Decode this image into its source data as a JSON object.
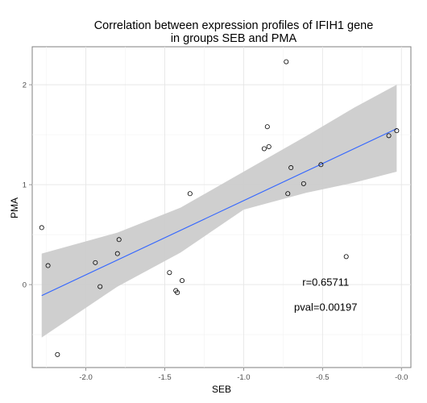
{
  "chart_data": {
    "type": "scatter",
    "title": "Correlation between expression profiles of IFIH1 gene",
    "subtitle": "in groups SEB and PMA",
    "xlabel": "SEB",
    "ylabel": "PMA",
    "xlim": [
      -2.34,
      0.06
    ],
    "ylim": [
      -0.83,
      2.38
    ],
    "xticks": [
      -2.0,
      -1.5,
      -1.0,
      -0.5,
      0.0
    ],
    "xtick_labels": [
      "-2.0",
      "-1.5",
      "-1.0",
      "-0.5",
      "-0.0"
    ],
    "yticks": [
      0,
      1,
      2
    ],
    "ytick_labels": [
      "0",
      "1",
      "2"
    ],
    "grid": true,
    "points": [
      {
        "x": -2.28,
        "y": 0.57
      },
      {
        "x": -2.24,
        "y": 0.19
      },
      {
        "x": -2.18,
        "y": -0.7
      },
      {
        "x": -1.94,
        "y": 0.22
      },
      {
        "x": -1.91,
        "y": -0.02
      },
      {
        "x": -1.8,
        "y": 0.31
      },
      {
        "x": -1.79,
        "y": 0.45
      },
      {
        "x": -1.47,
        "y": 0.12
      },
      {
        "x": -1.43,
        "y": -0.06
      },
      {
        "x": -1.42,
        "y": -0.08
      },
      {
        "x": -1.39,
        "y": 0.04
      },
      {
        "x": -1.34,
        "y": 0.91
      },
      {
        "x": -0.87,
        "y": 1.36
      },
      {
        "x": -0.85,
        "y": 1.58
      },
      {
        "x": -0.84,
        "y": 1.38
      },
      {
        "x": -0.73,
        "y": 2.23
      },
      {
        "x": -0.72,
        "y": 0.91
      },
      {
        "x": -0.7,
        "y": 1.17
      },
      {
        "x": -0.62,
        "y": 1.01
      },
      {
        "x": -0.51,
        "y": 1.2
      },
      {
        "x": -0.35,
        "y": 0.28
      },
      {
        "x": -0.08,
        "y": 1.49
      },
      {
        "x": -0.03,
        "y": 1.54
      }
    ],
    "fit_line": {
      "x": [
        -2.28,
        -0.03
      ],
      "y": [
        -0.11,
        1.56
      ],
      "color": "#3366ff"
    },
    "confidence_band": {
      "x": [
        -2.28,
        -1.8,
        -1.4,
        -1.0,
        -0.6,
        -0.3,
        -0.03
      ],
      "upper": [
        0.31,
        0.52,
        0.77,
        1.13,
        1.49,
        1.77,
        2.0
      ],
      "lower": [
        -0.53,
        -0.02,
        0.32,
        0.75,
        0.92,
        1.02,
        1.13
      ],
      "color": "#cccccc"
    },
    "annotations": [
      {
        "text": "r=0.65711",
        "x": -0.48,
        "y": -0.01
      },
      {
        "text": "pval=0.00197",
        "x": -0.48,
        "y": -0.26
      }
    ]
  }
}
